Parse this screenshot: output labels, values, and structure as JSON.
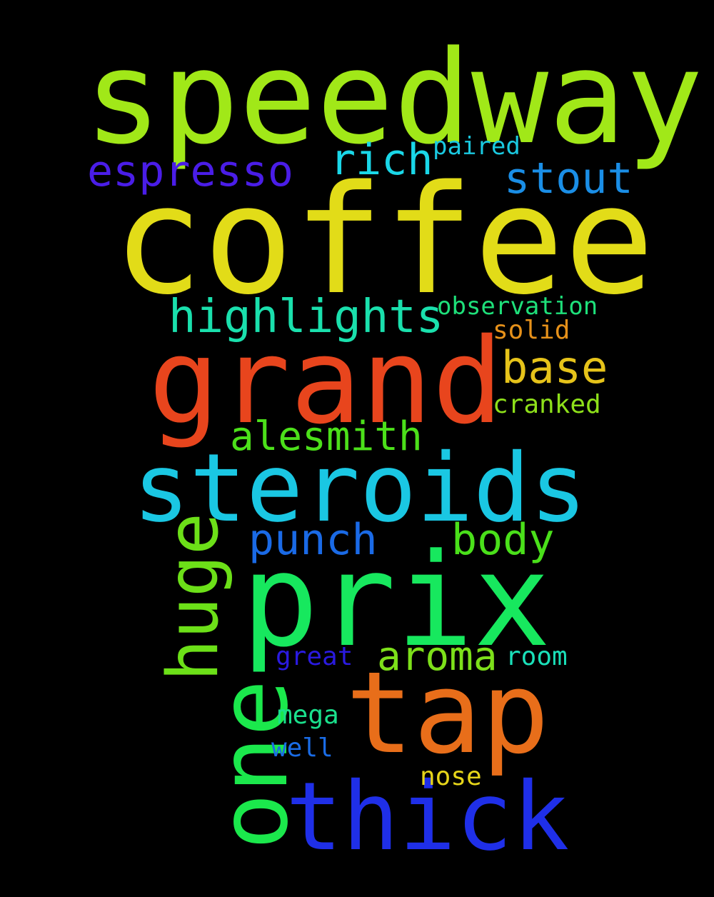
{
  "words": {
    "speedway": {
      "text": "speedway",
      "color": "#a1e818"
    },
    "coffee": {
      "text": "coffee",
      "color": "#e2dc18"
    },
    "grand": {
      "text": "grand",
      "color": "#e8451d"
    },
    "steroids": {
      "text": "steroids",
      "color": "#1ac7e3"
    },
    "prix": {
      "text": "prix",
      "color": "#17e85e"
    },
    "tap": {
      "text": "tap",
      "color": "#e86e1a"
    },
    "thick": {
      "text": "thick",
      "color": "#1f2fe8"
    },
    "one": {
      "text": "one",
      "color": "#1be84c"
    },
    "huge": {
      "text": "huge",
      "color": "#6ce018"
    },
    "espresso": {
      "text": "espresso",
      "color": "#4a1de8"
    },
    "rich": {
      "text": "rich",
      "color": "#1ad7e8"
    },
    "paired": {
      "text": "paired",
      "color": "#1ac9e0"
    },
    "stout": {
      "text": "stout",
      "color": "#1a8ee6"
    },
    "highlights": {
      "text": "highlights",
      "color": "#1ae0ad"
    },
    "observation": {
      "text": "observation",
      "color": "#1ee07a"
    },
    "solid": {
      "text": "solid",
      "color": "#e6911a"
    },
    "base": {
      "text": "base",
      "color": "#e6c31a"
    },
    "cranked": {
      "text": "cranked",
      "color": "#8ee01a"
    },
    "alesmith": {
      "text": "alesmith",
      "color": "#4ce01a"
    },
    "punch": {
      "text": "punch",
      "color": "#1a6ae6"
    },
    "body": {
      "text": "body",
      "color": "#4ae01a"
    },
    "aroma": {
      "text": "aroma",
      "color": "#7de01a"
    },
    "great": {
      "text": "great",
      "color": "#2a1ae0"
    },
    "room": {
      "text": "room",
      "color": "#1ae0b9"
    },
    "mega": {
      "text": "mega",
      "color": "#1ae08c"
    },
    "well": {
      "text": "well",
      "color": "#1a6ce6"
    },
    "nose": {
      "text": "nose",
      "color": "#e6d51a"
    }
  }
}
